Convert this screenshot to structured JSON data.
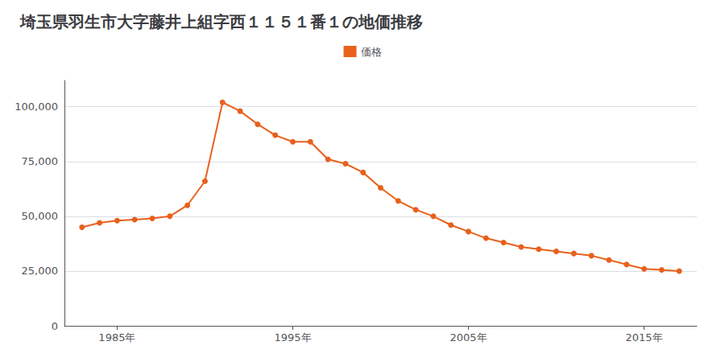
{
  "chart_data": {
    "type": "line",
    "title": "埼玉県羽生市大字藤井上組字西１１５１番１の地価推移",
    "x": [
      1983,
      1984,
      1985,
      1986,
      1987,
      1988,
      1989,
      1990,
      1991,
      1992,
      1993,
      1994,
      1995,
      1996,
      1997,
      1998,
      1999,
      2000,
      2001,
      2002,
      2003,
      2004,
      2005,
      2006,
      2007,
      2008,
      2009,
      2010,
      2011,
      2012,
      2013,
      2014,
      2015,
      2016,
      2017
    ],
    "series": [
      {
        "name": "価格",
        "color": "#e8601c",
        "values": [
          45000,
          47000,
          48000,
          48500,
          49000,
          50000,
          55000,
          66000,
          102000,
          98000,
          92000,
          87000,
          84000,
          84000,
          76000,
          74000,
          70000,
          63000,
          57000,
          53000,
          50000,
          46000,
          43000,
          40000,
          38000,
          36000,
          35000,
          34000,
          33000,
          32000,
          30000,
          28000,
          26000,
          25500,
          25000
        ]
      }
    ],
    "xlim": [
      1982,
      2018
    ],
    "xticks": [
      {
        "value": 1985,
        "label": "1985年"
      },
      {
        "value": 1995,
        "label": "1995年"
      },
      {
        "value": 2005,
        "label": "2005年"
      },
      {
        "value": 2015,
        "label": "2015年"
      }
    ],
    "ylim": [
      0,
      112000
    ],
    "yticks": [
      0,
      {
        "value": 25000,
        "label": "25,000"
      },
      {
        "value": 50000,
        "label": "50,000"
      },
      {
        "value": 75000,
        "label": "75,000"
      },
      {
        "value": 100000,
        "label": "100,000"
      }
    ],
    "grid": true,
    "legend": "top",
    "marker": "circle"
  }
}
